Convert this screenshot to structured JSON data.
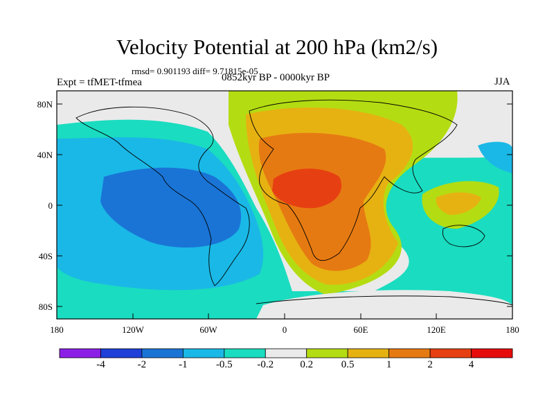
{
  "title": "Velocity Potential at 200 hPa (km2/s)",
  "stats": "rmsd= 0.901193 diff= 9.71815e-05",
  "left_label": "Expt = tfMET-tfmea",
  "center_label": "0852kyr BP - 0000kyr BP",
  "right_label": "JJA",
  "y_ticks": [
    "80N",
    "40N",
    "0",
    "40S",
    "80S"
  ],
  "x_ticks": [
    "180",
    "120W",
    "60W",
    "0",
    "60E",
    "120E",
    "180"
  ],
  "colorbar": {
    "colors": [
      "#8c1fe6",
      "#1f3fd8",
      "#1a74d6",
      "#1ab8e6",
      "#1adcc0",
      "#eaeaea",
      "#b4dc12",
      "#e6b212",
      "#e67a12",
      "#e64012",
      "#e60c0c"
    ],
    "labels": [
      "-4",
      "-2",
      "-1",
      "-0.5",
      "-0.2",
      "0.2",
      "0.5",
      "1",
      "2",
      "4"
    ]
  }
}
